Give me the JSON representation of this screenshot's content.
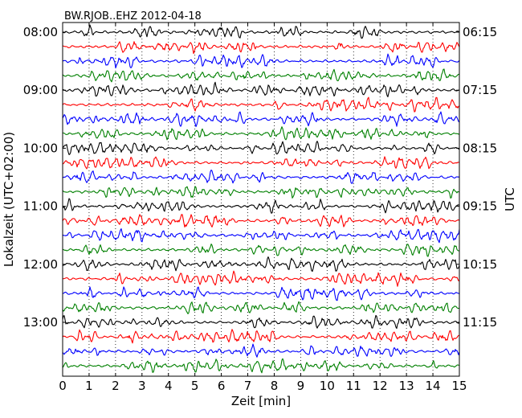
{
  "chart_data": {
    "type": "line",
    "title": "BW.RJOB..EHZ 2012-04-18",
    "xlabel": "Zeit  [min]",
    "ylabel_left": "Lokalzeit (UTC+02:00)",
    "ylabel_right": "UTC",
    "xlim": [
      0,
      15
    ],
    "x_ticks": [
      0,
      1,
      2,
      3,
      4,
      5,
      6,
      7,
      8,
      9,
      10,
      11,
      12,
      13,
      14,
      15
    ],
    "x_tick_labels": [
      "0",
      "1",
      "2",
      "3",
      "4",
      "5",
      "6",
      "7",
      "8",
      "9",
      "10",
      "11",
      "12",
      "13",
      "14",
      "15"
    ],
    "trace_count": 24,
    "trace_minutes": 15,
    "trace_colors": [
      "#000000",
      "#ff0000",
      "#0000ff",
      "#008000"
    ],
    "left_tick_labels": [
      "08:00",
      "09:00",
      "10:00",
      "11:00",
      "12:00",
      "13:00"
    ],
    "right_tick_labels": [
      "06:15",
      "07:15",
      "08:15",
      "09:15",
      "10:15",
      "11:15"
    ],
    "label_trace_indices": [
      0,
      4,
      8,
      12,
      16,
      20
    ],
    "vertical_grid": true,
    "grid_style": "dotted"
  }
}
